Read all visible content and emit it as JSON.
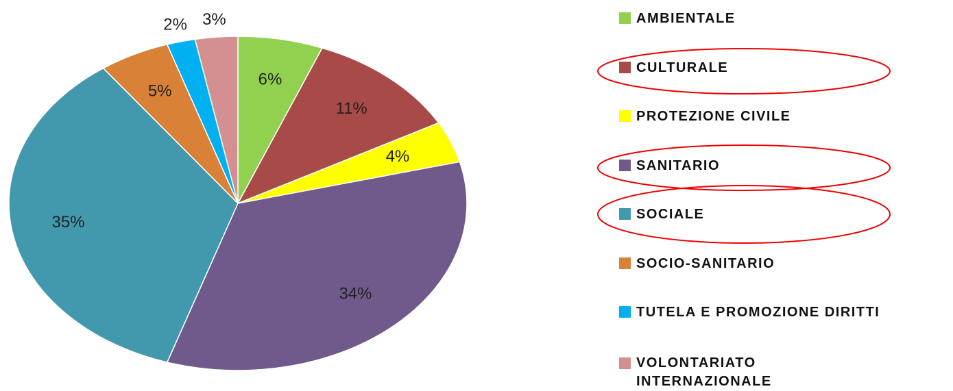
{
  "chart_data": {
    "type": "pie",
    "categories": [
      "AMBIENTALE",
      "CULTURALE",
      "PROTEZIONE CIVILE",
      "SANITARIO",
      "SOCIALE",
      "SOCIO-SANITARIO",
      "TUTELA E PROMOZIONE DIRITTI",
      "VOLONTARIATO INTERNAZIONALE"
    ],
    "values": [
      6,
      11,
      4,
      34,
      35,
      5,
      2,
      3
    ],
    "value_labels": [
      "6%",
      "11%",
      "4%",
      "34%",
      "35%",
      "5%",
      "2%",
      "3%"
    ],
    "colors": [
      "#92d050",
      "#a84a48",
      "#ffff00",
      "#705a8c",
      "#4298ad",
      "#d98136",
      "#00b0f0",
      "#d49090"
    ],
    "legend": "right"
  }
}
